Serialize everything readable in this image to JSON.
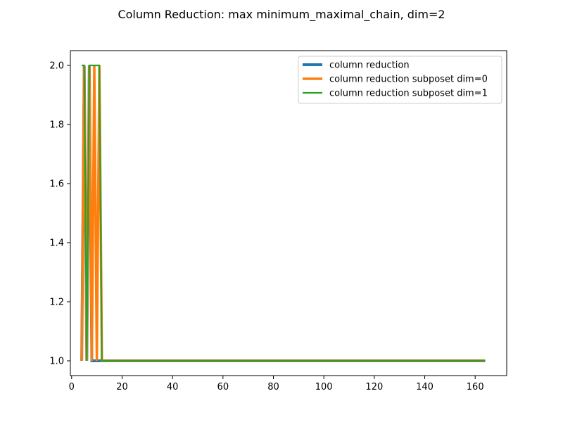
{
  "chart_data": {
    "type": "line",
    "title": "Column Reduction: max minimum_maximal_chain, dim=2",
    "xlabel": "",
    "ylabel": "",
    "xlim": [
      -0.5,
      172.5
    ],
    "ylim": [
      0.95,
      2.05
    ],
    "xticks": [
      0,
      20,
      40,
      60,
      80,
      100,
      120,
      140,
      160
    ],
    "xtick_labels": [
      "0",
      "20",
      "40",
      "60",
      "80",
      "100",
      "120",
      "140",
      "160"
    ],
    "yticks": [
      1.0,
      1.2,
      1.4,
      1.6,
      1.8,
      2.0
    ],
    "ytick_labels": [
      "1.0",
      "1.2",
      "1.4",
      "1.6",
      "1.8",
      "2.0"
    ],
    "grid": false,
    "legend_position": "top-right",
    "series": [
      {
        "name": "column reduction",
        "color": "#1f77b4",
        "x": [
          4,
          5,
          6,
          7,
          8,
          9,
          10,
          11,
          12,
          164
        ],
        "y": [
          1,
          2,
          1,
          2,
          1,
          1,
          1,
          1,
          1,
          1
        ]
      },
      {
        "name": "column reduction subposet dim=0",
        "color": "#ff7f0e",
        "x": [
          4,
          5,
          6,
          7,
          8,
          9,
          10,
          11,
          12,
          164
        ],
        "y": [
          1,
          2,
          1,
          2,
          1,
          2,
          1,
          2,
          1,
          1
        ]
      },
      {
        "name": "column reduction subposet dim=1",
        "color": "#2ca02c",
        "x": [
          4,
          5,
          6,
          7,
          8,
          9,
          10,
          11,
          12,
          164
        ],
        "y": [
          2,
          2,
          1,
          2,
          2,
          2,
          2,
          2,
          1,
          1
        ]
      }
    ]
  }
}
